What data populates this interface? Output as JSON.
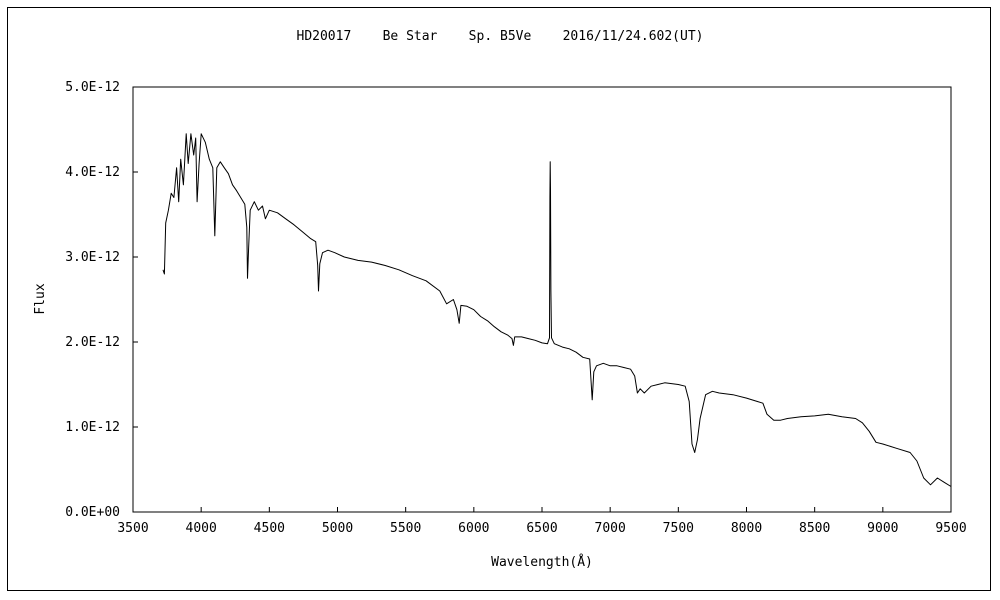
{
  "chart_data": {
    "type": "line",
    "title": "HD20017    Be Star    Sp. B5Ve    2016/11/24.602(UT)",
    "xlabel": "Wavelength(Å)",
    "ylabel": "Flux",
    "xlim": [
      3500,
      9500
    ],
    "ylim": [
      0,
      5e-12
    ],
    "x_ticks": [
      3500,
      4000,
      4500,
      5000,
      5500,
      6000,
      6500,
      7000,
      7500,
      8000,
      8500,
      9000,
      9500
    ],
    "x_tick_labels": [
      "3500",
      "4000",
      "4500",
      "5000",
      "5500",
      "6000",
      "6500",
      "7000",
      "7500",
      "8000",
      "8500",
      "9000",
      "9500"
    ],
    "y_ticks": [
      0,
      1e-12,
      2e-12,
      3e-12,
      4e-12,
      5e-12
    ],
    "y_tick_labels": [
      "0.0E+00",
      "1.0E-12",
      "2.0E-12",
      "3.0E-12",
      "4.0E-12",
      "5.0E-12"
    ],
    "grid": false,
    "legend": "none",
    "series": [
      {
        "color": "#000000",
        "points": [
          [
            3720,
            2.85e-12
          ],
          [
            3730,
            2.8e-12
          ],
          [
            3740,
            3.4e-12
          ],
          [
            3760,
            3.55e-12
          ],
          [
            3780,
            3.75e-12
          ],
          [
            3800,
            3.7e-12
          ],
          [
            3820,
            4.05e-12
          ],
          [
            3835,
            3.65e-12
          ],
          [
            3850,
            4.15e-12
          ],
          [
            3870,
            3.85e-12
          ],
          [
            3890,
            4.45e-12
          ],
          [
            3905,
            4.1e-12
          ],
          [
            3925,
            4.45e-12
          ],
          [
            3945,
            4.2e-12
          ],
          [
            3960,
            4.4e-12
          ],
          [
            3970,
            3.65e-12
          ],
          [
            3985,
            4.1e-12
          ],
          [
            4000,
            4.45e-12
          ],
          [
            4030,
            4.35e-12
          ],
          [
            4060,
            4.15e-12
          ],
          [
            4085,
            4.05e-12
          ],
          [
            4100,
            3.25e-12
          ],
          [
            4115,
            4.05e-12
          ],
          [
            4140,
            4.12e-12
          ],
          [
            4170,
            4.05e-12
          ],
          [
            4200,
            3.98e-12
          ],
          [
            4230,
            3.85e-12
          ],
          [
            4260,
            3.78e-12
          ],
          [
            4290,
            3.7e-12
          ],
          [
            4320,
            3.62e-12
          ],
          [
            4335,
            3.35e-12
          ],
          [
            4340,
            2.75e-12
          ],
          [
            4348,
            3.1e-12
          ],
          [
            4360,
            3.55e-12
          ],
          [
            4390,
            3.65e-12
          ],
          [
            4420,
            3.55e-12
          ],
          [
            4450,
            3.6e-12
          ],
          [
            4471,
            3.45e-12
          ],
          [
            4500,
            3.55e-12
          ],
          [
            4560,
            3.52e-12
          ],
          [
            4620,
            3.45e-12
          ],
          [
            4680,
            3.38e-12
          ],
          [
            4740,
            3.3e-12
          ],
          [
            4800,
            3.22e-12
          ],
          [
            4840,
            3.18e-12
          ],
          [
            4855,
            2.9e-12
          ],
          [
            4861,
            2.6e-12
          ],
          [
            4870,
            2.92e-12
          ],
          [
            4890,
            3.05e-12
          ],
          [
            4930,
            3.08e-12
          ],
          [
            4980,
            3.05e-12
          ],
          [
            5050,
            3e-12
          ],
          [
            5150,
            2.96e-12
          ],
          [
            5250,
            2.94e-12
          ],
          [
            5350,
            2.9e-12
          ],
          [
            5450,
            2.85e-12
          ],
          [
            5550,
            2.78e-12
          ],
          [
            5650,
            2.72e-12
          ],
          [
            5750,
            2.6e-12
          ],
          [
            5800,
            2.45e-12
          ],
          [
            5850,
            2.5e-12
          ],
          [
            5876,
            2.38e-12
          ],
          [
            5893,
            2.22e-12
          ],
          [
            5905,
            2.43e-12
          ],
          [
            5950,
            2.42e-12
          ],
          [
            6000,
            2.38e-12
          ],
          [
            6050,
            2.3e-12
          ],
          [
            6100,
            2.25e-12
          ],
          [
            6150,
            2.18e-12
          ],
          [
            6200,
            2.12e-12
          ],
          [
            6250,
            2.08e-12
          ],
          [
            6280,
            2.04e-12
          ],
          [
            6290,
            1.96e-12
          ],
          [
            6300,
            2.06e-12
          ],
          [
            6350,
            2.06e-12
          ],
          [
            6400,
            2.04e-12
          ],
          [
            6450,
            2.02e-12
          ],
          [
            6500,
            1.99e-12
          ],
          [
            6540,
            1.98e-12
          ],
          [
            6555,
            2.05e-12
          ],
          [
            6558,
            3.7e-12
          ],
          [
            6560,
            4.12e-12
          ],
          [
            6562,
            3.8e-12
          ],
          [
            6565,
            2.6e-12
          ],
          [
            6570,
            2.05e-12
          ],
          [
            6590,
            1.98e-12
          ],
          [
            6650,
            1.94e-12
          ],
          [
            6700,
            1.92e-12
          ],
          [
            6750,
            1.88e-12
          ],
          [
            6800,
            1.82e-12
          ],
          [
            6850,
            1.8e-12
          ],
          [
            6868,
            1.32e-12
          ],
          [
            6880,
            1.65e-12
          ],
          [
            6900,
            1.72e-12
          ],
          [
            6950,
            1.75e-12
          ],
          [
            7000,
            1.72e-12
          ],
          [
            7050,
            1.72e-12
          ],
          [
            7100,
            1.7e-12
          ],
          [
            7150,
            1.68e-12
          ],
          [
            7180,
            1.6e-12
          ],
          [
            7200,
            1.4e-12
          ],
          [
            7220,
            1.45e-12
          ],
          [
            7250,
            1.4e-12
          ],
          [
            7300,
            1.48e-12
          ],
          [
            7350,
            1.5e-12
          ],
          [
            7400,
            1.52e-12
          ],
          [
            7450,
            1.51e-12
          ],
          [
            7500,
            1.5e-12
          ],
          [
            7550,
            1.48e-12
          ],
          [
            7580,
            1.3e-12
          ],
          [
            7600,
            8e-13
          ],
          [
            7620,
            7e-13
          ],
          [
            7640,
            8.5e-13
          ],
          [
            7660,
            1.1e-12
          ],
          [
            7700,
            1.38e-12
          ],
          [
            7750,
            1.42e-12
          ],
          [
            7800,
            1.4e-12
          ],
          [
            7900,
            1.38e-12
          ],
          [
            8000,
            1.34e-12
          ],
          [
            8080,
            1.3e-12
          ],
          [
            8120,
            1.28e-12
          ],
          [
            8150,
            1.15e-12
          ],
          [
            8200,
            1.08e-12
          ],
          [
            8250,
            1.08e-12
          ],
          [
            8300,
            1.1e-12
          ],
          [
            8400,
            1.12e-12
          ],
          [
            8500,
            1.13e-12
          ],
          [
            8600,
            1.15e-12
          ],
          [
            8700,
            1.12e-12
          ],
          [
            8800,
            1.1e-12
          ],
          [
            8850,
            1.05e-12
          ],
          [
            8900,
            9.5e-13
          ],
          [
            8950,
            8.2e-13
          ],
          [
            9000,
            8e-13
          ],
          [
            9100,
            7.5e-13
          ],
          [
            9200,
            7e-13
          ],
          [
            9250,
            6e-13
          ],
          [
            9300,
            4e-13
          ],
          [
            9350,
            3.2e-13
          ],
          [
            9400,
            4e-13
          ],
          [
            9450,
            3.5e-13
          ],
          [
            9500,
            3e-13
          ]
        ]
      }
    ]
  }
}
